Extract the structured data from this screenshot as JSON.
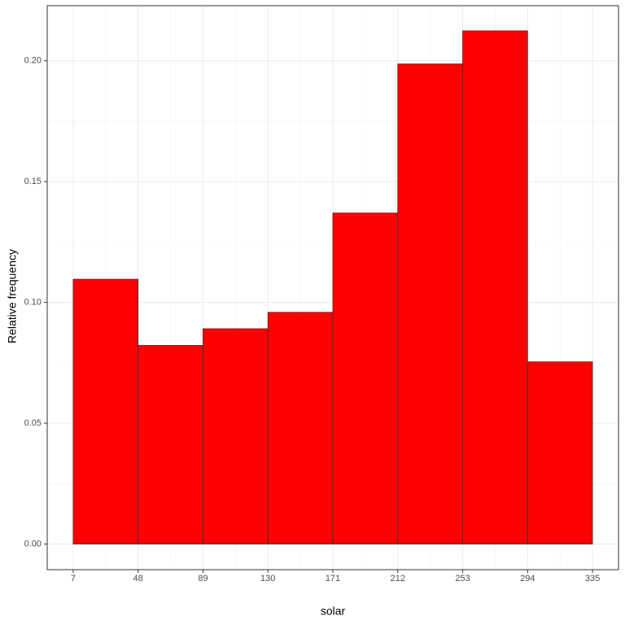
{
  "chart_data": {
    "type": "histogram",
    "x_label": "solar",
    "y_label": "Relative frequency",
    "bins": [
      7,
      48,
      89,
      130,
      171,
      212,
      253,
      294,
      335
    ],
    "values": [
      0.1096,
      0.0822,
      0.0891,
      0.0959,
      0.137,
      0.1987,
      0.2124,
      0.0754
    ],
    "color": "#ff0000",
    "edge_color": "#333333",
    "xlim": [
      -9.4,
      351.4
    ],
    "ylim": [
      -0.0106,
      0.2228
    ],
    "xticks": [
      7,
      48,
      89,
      130,
      171,
      212,
      253,
      294,
      335
    ],
    "yticks": [
      {
        "value": 0,
        "label": "0.00"
      },
      {
        "value": 0.05,
        "label": "0.05"
      },
      {
        "value": 0.1,
        "label": "0.10"
      },
      {
        "value": 0.15,
        "label": "0.15"
      },
      {
        "value": 0.2,
        "label": "0.20"
      }
    ],
    "grid": true
  }
}
